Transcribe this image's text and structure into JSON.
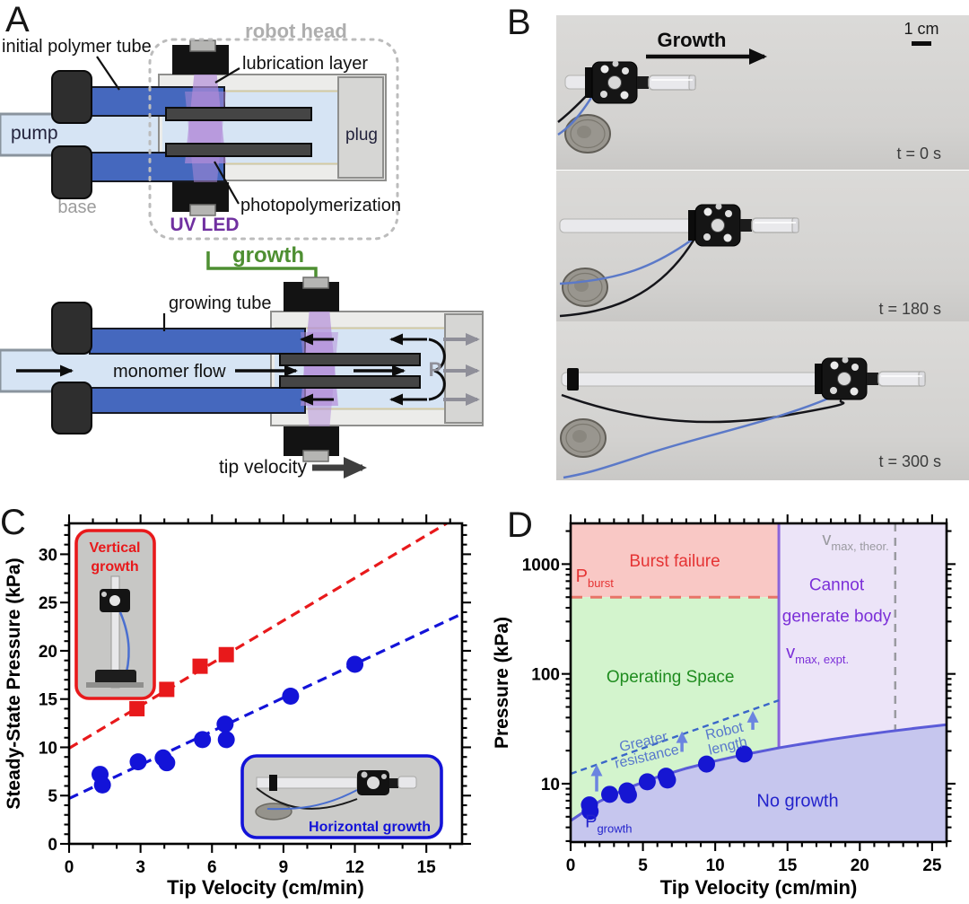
{
  "panels": {
    "a": "A",
    "b": "B",
    "c": "C",
    "d": "D"
  },
  "panel_a": {
    "labels": {
      "robot_head": "robot head",
      "initial_polymer_tube": "initial polymer tube",
      "lubrication_layer": "lubrication layer",
      "pump": "pump",
      "plug": "plug",
      "base": "base",
      "uv_led": "UV LED",
      "photopolymerization": "photopolymerization",
      "growth": "growth",
      "growing_tube": "growing tube",
      "monomer_flow": "monomer flow",
      "pressure_symbol": "P",
      "tip_velocity": "tip velocity"
    }
  },
  "panel_b": {
    "growth_arrow_label": "Growth",
    "scale_bar_label": "1 cm",
    "frames": [
      {
        "time_label": "t = 0 s"
      },
      {
        "time_label": "t = 180 s"
      },
      {
        "time_label": "t = 300 s"
      }
    ]
  },
  "chart_data": [
    {
      "id": "panel-c",
      "type": "scatter",
      "title": "",
      "xlabel": "Tip Velocity (cm/min)",
      "ylabel": "Steady-State Pressure (kPa)",
      "xlim": [
        0,
        16.5
      ],
      "ylim": [
        0,
        33.2
      ],
      "xticks": [
        0,
        3,
        6,
        9,
        12,
        15
      ],
      "yticks": [
        0,
        5,
        10,
        15,
        20,
        25,
        30
      ],
      "x_minor_step": 1,
      "y_minor_step": 1,
      "grid": false,
      "series": [
        {
          "name": "Vertical growth",
          "marker": "square",
          "color": "#e8191b",
          "points": [
            [
              2.85,
              14.0
            ],
            [
              4.1,
              16.0
            ],
            [
              5.5,
              18.4
            ],
            [
              6.6,
              19.6
            ]
          ],
          "trend": {
            "style": "dashed",
            "intercept": 9.9,
            "slope": 1.47
          }
        },
        {
          "name": "Horizontal growth",
          "marker": "circle",
          "color": "#1313d8",
          "points": [
            [
              1.3,
              7.2
            ],
            [
              1.4,
              6.1
            ],
            [
              2.9,
              8.5
            ],
            [
              3.95,
              8.9
            ],
            [
              4.1,
              8.4
            ],
            [
              5.6,
              10.8
            ],
            [
              6.55,
              12.4
            ],
            [
              6.6,
              10.8
            ],
            [
              9.3,
              15.3
            ],
            [
              12.0,
              18.6
            ]
          ],
          "trend": {
            "style": "dashed",
            "intercept": 4.7,
            "slope": 1.16
          }
        }
      ],
      "insets": [
        {
          "label": "Vertical growth",
          "stacked": true,
          "accent": "#e8191b"
        },
        {
          "label": "Horizontal growth",
          "stacked": false,
          "accent": "#1313d8"
        }
      ]
    },
    {
      "id": "panel-d",
      "type": "phase-diagram",
      "xlabel": "Tip Velocity (cm/min)",
      "ylabel": "Pressure (kPa)",
      "xlim": [
        0,
        26
      ],
      "ylim_log": [
        2.94,
        2350
      ],
      "xticks": [
        0,
        5,
        10,
        15,
        20,
        25
      ],
      "yticks": [
        10,
        100,
        1000
      ],
      "x_minor_step": 1,
      "p_burst_kpa": 500,
      "v_max_expt": 14.4,
      "v_max_theor": 22.45,
      "growth_curve": [
        [
          0,
          4.6
        ],
        [
          2,
          6.9
        ],
        [
          4,
          9.2
        ],
        [
          6,
          11.5
        ],
        [
          8,
          13.8
        ],
        [
          10,
          16.1
        ],
        [
          12,
          18.4
        ],
        [
          14.4,
          21.2
        ],
        [
          16,
          23.0
        ],
        [
          18,
          25.3
        ],
        [
          20,
          27.6
        ],
        [
          22,
          29.9
        ],
        [
          24,
          32.2
        ],
        [
          26,
          34.5
        ]
      ],
      "resistance_curve": [
        [
          0,
          12.3
        ],
        [
          2,
          15.2
        ],
        [
          4,
          18.9
        ],
        [
          6,
          23.4
        ],
        [
          8,
          29.0
        ],
        [
          10,
          35.9
        ],
        [
          12,
          44.5
        ],
        [
          14.4,
          57.5
        ]
      ],
      "points": [
        [
          1.3,
          6.4
        ],
        [
          1.35,
          5.6
        ],
        [
          2.7,
          8.0
        ],
        [
          3.9,
          8.6
        ],
        [
          4.0,
          7.9
        ],
        [
          5.3,
          10.4
        ],
        [
          6.6,
          11.7
        ],
        [
          6.7,
          10.8
        ],
        [
          9.4,
          15.1
        ],
        [
          12.0,
          18.6
        ]
      ],
      "point_color": "#1616d2",
      "arrows": [
        {
          "x": 1.8,
          "y0": 8.5,
          "y1": 15.0
        },
        {
          "x": 7.7,
          "y0": 19.5,
          "y1": 30.0
        },
        {
          "x": 12.6,
          "y0": 31.0,
          "y1": 46.0
        }
      ],
      "regions": {
        "burst": {
          "label": "Burst failure",
          "fill": "#f9c8c5",
          "text_color": "#e53434",
          "label_x": 7.2,
          "label_y": 950
        },
        "operating": {
          "label": "Operating Space",
          "fill": "#d3f4cd",
          "text_color": "#1f8c1f",
          "label_x": 6.9,
          "label_y": 84
        },
        "cannot": {
          "label_line1": "Cannot",
          "label_line2": "generate body",
          "fill": "#ece4f8",
          "text_color": "#7b2fd8",
          "label_x": 18.4,
          "label_y1": 580,
          "label_y2": 300
        },
        "no_growth": {
          "label": "No growth",
          "fill": "#c6c6ee",
          "text_color": "#2424cc",
          "label_x": 15.7,
          "label_y": 6.2
        }
      },
      "boundary_colors": {
        "p_burst": "#e87468",
        "v_max_expt": "#8a64da",
        "v_max_theor": "#9a9aa0",
        "growth": "#5b5bd8",
        "resistance": "#3a66c8",
        "arrow": "#6b84e0"
      },
      "symbol_labels": [
        {
          "main": "P",
          "sub": "burst",
          "x": 0.35,
          "y": 690,
          "color": "#e53434"
        },
        {
          "main": "P",
          "sub": "growth",
          "x": 1.0,
          "y": 4.0,
          "color": "#2424cc"
        },
        {
          "main": "v",
          "sub": "max, expt.",
          "x": 14.9,
          "y": 140,
          "color": "#7b2fd8"
        },
        {
          "main": "v",
          "sub": "max, theor.",
          "x": 17.4,
          "y": 1500,
          "color": "#9a9aa0"
        }
      ],
      "rotated_labels": [
        {
          "line1": "Greater",
          "line2": "resistance",
          "x": 5.1,
          "y": 22,
          "angle": -13,
          "color": "#5878cc"
        },
        {
          "line1": "Robot",
          "line2": "length",
          "x": 10.7,
          "y": 27.5,
          "angle": -13,
          "color": "#5878cc"
        }
      ]
    }
  ]
}
